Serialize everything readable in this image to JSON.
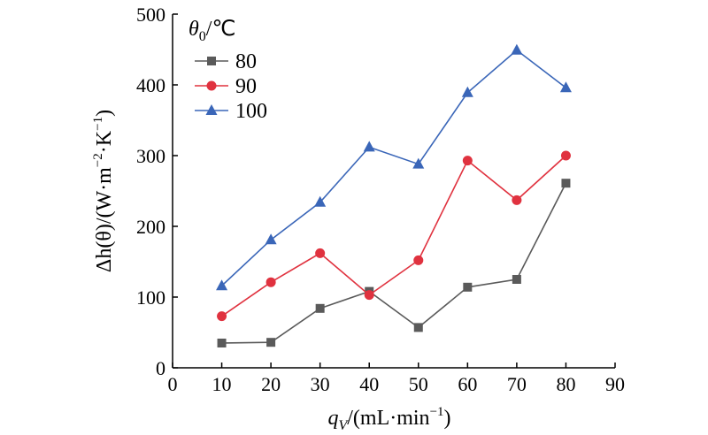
{
  "chart_data": {
    "type": "line",
    "x": [
      10,
      20,
      30,
      40,
      50,
      60,
      70,
      80
    ],
    "xlim": [
      0,
      90
    ],
    "ylim": [
      0,
      500
    ],
    "xticks": [
      "0",
      "10",
      "20",
      "30",
      "40",
      "50",
      "60",
      "70",
      "80",
      "90"
    ],
    "yticks": [
      "0",
      "100",
      "200",
      "300",
      "400",
      "500"
    ],
    "xlabel": {
      "main": "q",
      "sub": "V",
      "rest": "/(mL·min",
      "sup": "−1",
      "end": ")"
    },
    "ylabel": {
      "main": "Δh(θ)/(W·m",
      "sup1": "−2",
      "mid": "·K",
      "sup2": "−1",
      "end": ")"
    },
    "legend": {
      "title_main": "θ",
      "title_sub": "0",
      "title_rest": "/℃",
      "position": "top-left"
    },
    "series": [
      {
        "name": "80",
        "color": "#5a5a5a",
        "marker": "square",
        "values": [
          35,
          36,
          84,
          108,
          57,
          114,
          125,
          261
        ]
      },
      {
        "name": "90",
        "color": "#e0323f",
        "marker": "circle",
        "values": [
          73,
          121,
          162,
          103,
          152,
          293,
          237,
          300
        ]
      },
      {
        "name": "100",
        "color": "#3a66b8",
        "marker": "triangle",
        "values": [
          116,
          181,
          234,
          312,
          288,
          389,
          449,
          396
        ]
      }
    ]
  }
}
